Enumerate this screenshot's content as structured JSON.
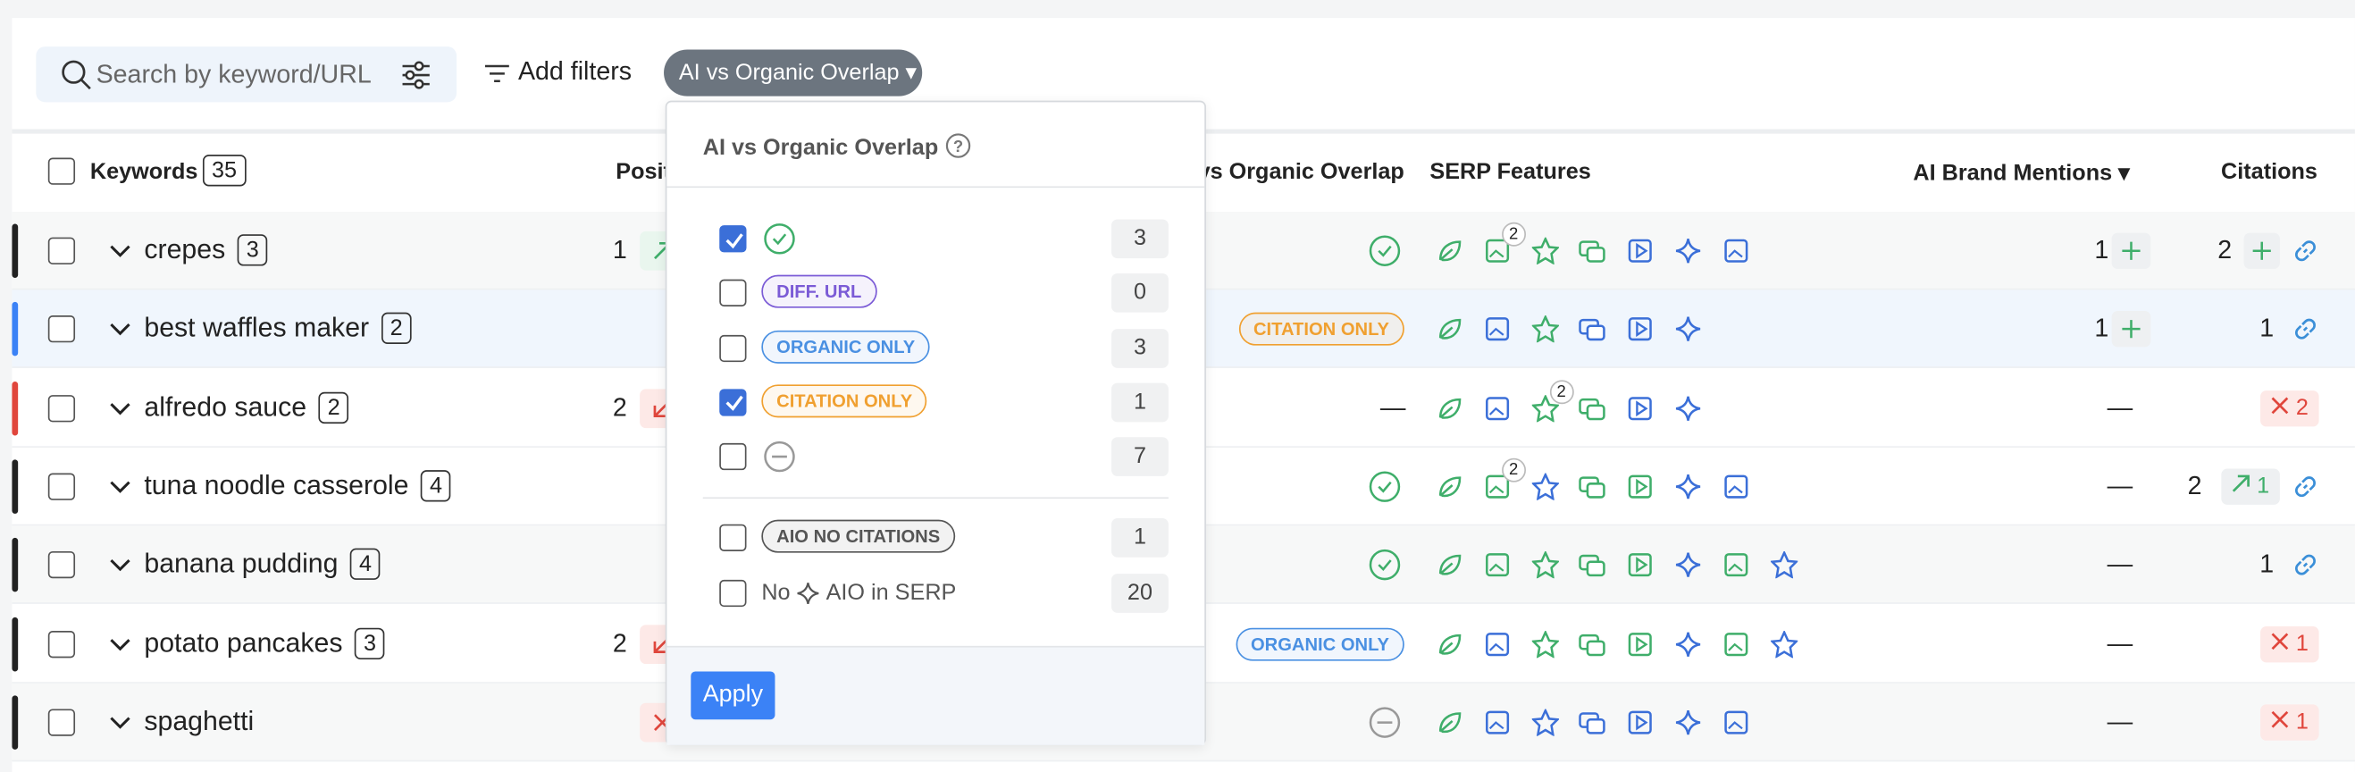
{
  "toolbar": {
    "search_placeholder": "Search by keyword/URL",
    "add_filters": "Add filters",
    "active_filter": "AI vs Organic Overlap"
  },
  "table": {
    "headers": {
      "keywords": "Keywords",
      "keywords_count": 35,
      "position": "Position",
      "overlap": "AI vs Organic Overlap",
      "serp": "SERP Features",
      "brand": "AI Brand Mentions",
      "citations": "Citations"
    },
    "rows": [
      {
        "bar": "#222",
        "bg": "#f7f8f8",
        "keyword": "crepes",
        "count": 3,
        "position": 1,
        "trend": "up",
        "overlap_icon": "check",
        "serp": [
          {
            "color": "#3fae6a"
          },
          {
            "color": "#3fae6a",
            "badge": 2
          },
          {
            "color": "#3fae6a"
          },
          {
            "color": "#3fae6a"
          },
          {
            "color": "#3b6fd8"
          },
          {
            "color": "#3b6fd8"
          },
          {
            "color": "#3b6fd8"
          }
        ],
        "brand": 1,
        "brand_plus": true,
        "citations": 2,
        "citations_plus": true,
        "link": true
      },
      {
        "bar": "#3b82f6",
        "bg": "#f0f6fd",
        "keyword": "best waffles maker",
        "count": 2,
        "overlap_tag": "CITATION ONLY",
        "overlap_color": "#f0a030",
        "serp": [
          {
            "color": "#3fae6a"
          },
          {
            "color": "#3b6fd8"
          },
          {
            "color": "#3fae6a"
          },
          {
            "color": "#3b6fd8"
          },
          {
            "color": "#3b6fd8"
          },
          {
            "color": "#3b6fd8"
          }
        ],
        "brand": 1,
        "brand_plus": true,
        "citations": 1,
        "link": true
      },
      {
        "bar": "#e0463c",
        "bg": "#ffffff",
        "keyword": "alfredo sauce",
        "count": 2,
        "position": 2,
        "trend": "down",
        "overlap_text": "—",
        "serp": [
          {
            "color": "#3fae6a"
          },
          {
            "color": "#3b6fd8"
          },
          {
            "color": "#3fae6a",
            "badge": 2
          },
          {
            "color": "#3fae6a"
          },
          {
            "color": "#3b6fd8"
          },
          {
            "color": "#3b6fd8"
          }
        ],
        "brand": "—",
        "lost": 2
      },
      {
        "bar": "#222",
        "bg": "#ffffff",
        "keyword": "tuna noodle casserole",
        "count": 4,
        "overlap_icon": "check",
        "serp": [
          {
            "color": "#3fae6a"
          },
          {
            "color": "#3fae6a",
            "badge": 2
          },
          {
            "color": "#3b6fd8"
          },
          {
            "color": "#3fae6a"
          },
          {
            "color": "#3fae6a"
          },
          {
            "color": "#3b6fd8"
          },
          {
            "color": "#3b6fd8"
          }
        ],
        "brand": "—",
        "citations": 2,
        "gained": 1,
        "link": true
      },
      {
        "bar": "#222",
        "bg": "#f7f8f8",
        "keyword": "banana pudding",
        "count": 4,
        "overlap_icon": "check",
        "serp": [
          {
            "color": "#3fae6a"
          },
          {
            "color": "#3fae6a"
          },
          {
            "color": "#3fae6a"
          },
          {
            "color": "#3fae6a"
          },
          {
            "color": "#3fae6a"
          },
          {
            "color": "#3b6fd8"
          },
          {
            "color": "#3fae6a"
          },
          {
            "color": "#3b6fd8"
          }
        ],
        "brand": "—",
        "citations": 1,
        "link": true
      },
      {
        "bar": "#222",
        "bg": "#ffffff",
        "keyword": "potato pancakes",
        "count": 3,
        "position": 2,
        "trend": "down",
        "overlap_tag": "ORGANIC ONLY",
        "overlap_color": "#4a90e2",
        "serp": [
          {
            "color": "#3fae6a"
          },
          {
            "color": "#3b6fd8"
          },
          {
            "color": "#3fae6a"
          },
          {
            "color": "#3fae6a"
          },
          {
            "color": "#3fae6a"
          },
          {
            "color": "#3b6fd8"
          },
          {
            "color": "#3fae6a"
          },
          {
            "color": "#3b6fd8"
          }
        ],
        "brand": "—",
        "lost": 1
      },
      {
        "bar": "#222",
        "bg": "#f7f8f8",
        "keyword": "spaghetti",
        "trend": "lost",
        "overlap_icon": "minus",
        "serp": [
          {
            "color": "#3fae6a"
          },
          {
            "color": "#3b6fd8"
          },
          {
            "color": "#3b6fd8"
          },
          {
            "color": "#3b6fd8"
          },
          {
            "color": "#3b6fd8"
          },
          {
            "color": "#3b6fd8"
          },
          {
            "color": "#3b6fd8"
          }
        ],
        "brand": "—",
        "lost": 1
      }
    ]
  },
  "dropdown": {
    "title": "AI vs Organic Overlap",
    "options": [
      {
        "checked": true,
        "icon": "check",
        "count": 3
      },
      {
        "checked": false,
        "label": "DIFF. URL",
        "color": "#7b5bd6",
        "count": 0
      },
      {
        "checked": false,
        "label": "ORGANIC ONLY",
        "color": "#4a90e2",
        "count": 3
      },
      {
        "checked": true,
        "label": "CITATION ONLY",
        "color": "#f0a030",
        "count": 1
      },
      {
        "checked": false,
        "icon": "minus",
        "count": 7
      }
    ],
    "extra_options": [
      {
        "checked": false,
        "label": "AIO NO CITATIONS",
        "color": "#555555",
        "count": 1
      },
      {
        "checked": false,
        "prefix": "No",
        "text": "AIO in SERP",
        "count": 20
      }
    ],
    "apply": "Apply"
  }
}
